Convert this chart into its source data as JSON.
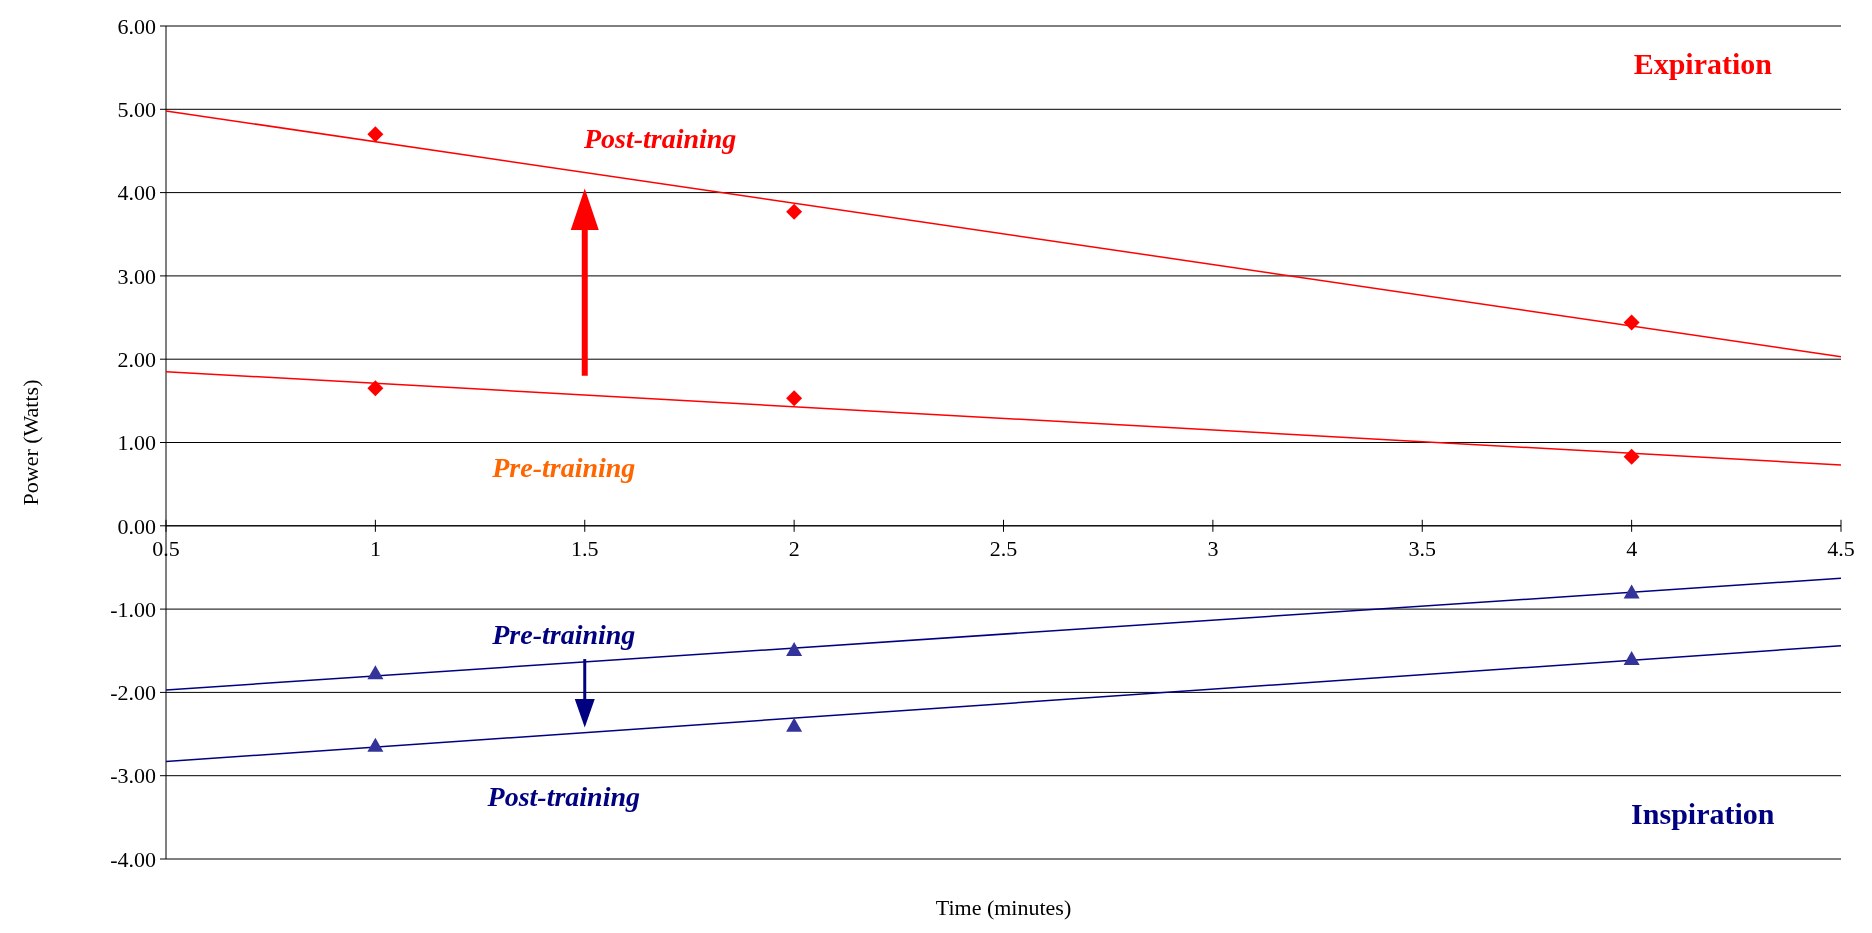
{
  "chart_data": {
    "type": "scatter",
    "xlabel": "Time (minutes)",
    "ylabel": "Power (Watts)",
    "xlim": [
      0.5,
      4.5
    ],
    "xticks": [
      0.5,
      1,
      1.5,
      2,
      2.5,
      3,
      3.5,
      4,
      4.5
    ],
    "ylim": [
      -4,
      6
    ],
    "yticks": [
      {
        "value": -4,
        "label": "-4.00"
      },
      {
        "value": -3,
        "label": "-3.00"
      },
      {
        "value": -2,
        "label": "-2.00"
      },
      {
        "value": -1,
        "label": "-1.00"
      },
      {
        "value": 0,
        "label": "0.00"
      },
      {
        "value": 1,
        "label": "1.00"
      },
      {
        "value": 2,
        "label": "2.00"
      },
      {
        "value": 3,
        "label": "3.00"
      },
      {
        "value": 4,
        "label": "4.00"
      },
      {
        "value": 5,
        "label": "5.00"
      },
      {
        "value": 6,
        "label": "6.00"
      }
    ],
    "grid": "y",
    "series": [
      {
        "color": "#ff0000",
        "marker": "diamond",
        "x": [
          1,
          2,
          4
        ],
        "values": [
          4.7,
          3.77,
          2.44
        ]
      },
      {
        "color": "#ff0000",
        "marker": "diamond",
        "x": [
          1,
          2,
          4
        ],
        "values": [
          1.65,
          1.53,
          0.83
        ]
      },
      {
        "color": "#333399",
        "marker": "triangle",
        "x": [
          1,
          2,
          4
        ],
        "values": [
          -1.77,
          -1.49,
          -0.8
        ]
      },
      {
        "color": "#333399",
        "marker": "triangle",
        "x": [
          1,
          2,
          4
        ],
        "values": [
          -2.64,
          -2.4,
          -1.6
        ]
      },
      {
        "type": "line",
        "color": "#ff0000",
        "x": [
          0.5,
          4.5
        ],
        "values": [
          4.98,
          2.03
        ]
      },
      {
        "type": "line",
        "color": "#ff0000",
        "x": [
          0.5,
          4.5
        ],
        "values": [
          1.85,
          0.73
        ]
      },
      {
        "type": "line",
        "color": "#000080",
        "x": [
          0.5,
          4.5
        ],
        "values": [
          -1.97,
          -0.63
        ]
      },
      {
        "type": "line",
        "color": "#000080",
        "x": [
          0.5,
          4.5
        ],
        "values": [
          -2.83,
          -1.44
        ]
      }
    ],
    "annotations": [
      "Expiration",
      "Post-training",
      "Pre-training",
      "Pre-training",
      "Post-training",
      "Inspiration"
    ]
  }
}
